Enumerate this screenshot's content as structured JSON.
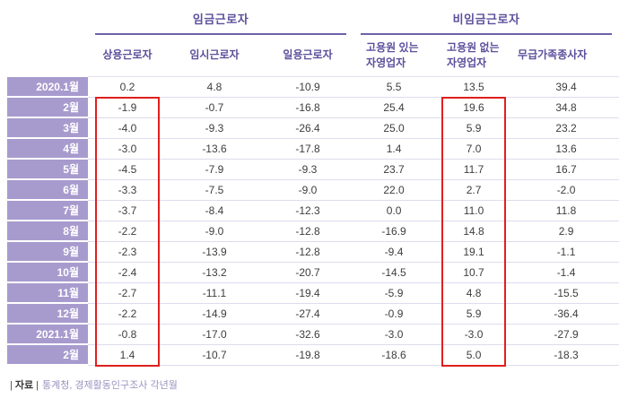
{
  "chart_data": {
    "type": "table",
    "group_headers": [
      {
        "label": "임금근로자",
        "span": 3
      },
      {
        "label": "비임금근로자",
        "span": 3
      }
    ],
    "columns": [
      "상용근로자",
      "임시근로자",
      "일용근로자",
      "고용원 있는\n자영업자",
      "고용원 없는\n자영업자",
      "무급가족종사자"
    ],
    "rows": [
      {
        "label": "2020.1월",
        "values": [
          "0.2",
          "4.8",
          "-10.9",
          "5.5",
          "13.5",
          "39.4"
        ]
      },
      {
        "label": "2월",
        "values": [
          "-1.9",
          "-0.7",
          "-16.8",
          "25.4",
          "19.6",
          "34.8"
        ]
      },
      {
        "label": "3월",
        "values": [
          "-4.0",
          "-9.3",
          "-26.4",
          "25.0",
          "5.9",
          "23.2"
        ]
      },
      {
        "label": "4월",
        "values": [
          "-3.0",
          "-13.6",
          "-17.8",
          "1.4",
          "7.0",
          "13.6"
        ]
      },
      {
        "label": "5월",
        "values": [
          "-4.5",
          "-7.9",
          "-9.3",
          "23.7",
          "11.7",
          "16.7"
        ]
      },
      {
        "label": "6월",
        "values": [
          "-3.3",
          "-7.5",
          "-9.0",
          "22.0",
          "2.7",
          "-2.0"
        ]
      },
      {
        "label": "7월",
        "values": [
          "-3.7",
          "-8.4",
          "-12.3",
          "0.0",
          "11.0",
          "11.8"
        ]
      },
      {
        "label": "8월",
        "values": [
          "-2.2",
          "-9.0",
          "-12.8",
          "-16.9",
          "14.8",
          "2.9"
        ]
      },
      {
        "label": "9월",
        "values": [
          "-2.3",
          "-13.9",
          "-12.8",
          "-9.4",
          "19.1",
          "-1.1"
        ]
      },
      {
        "label": "10월",
        "values": [
          "-2.4",
          "-13.2",
          "-20.7",
          "-14.5",
          "10.7",
          "-1.4"
        ]
      },
      {
        "label": "11월",
        "values": [
          "-2.7",
          "-11.1",
          "-19.4",
          "-5.9",
          "4.8",
          "-15.5"
        ]
      },
      {
        "label": "12월",
        "values": [
          "-2.2",
          "-14.9",
          "-27.4",
          "-0.9",
          "5.9",
          "-36.4"
        ]
      },
      {
        "label": "2021.1월",
        "values": [
          "-0.8",
          "-17.0",
          "-32.6",
          "-3.0",
          "-3.0",
          "-27.9"
        ]
      },
      {
        "label": "2월",
        "values": [
          "1.4",
          "-10.7",
          "-19.8",
          "-18.6",
          "5.0",
          "-18.3"
        ]
      }
    ],
    "highlights": [
      {
        "column": 0,
        "row_start": 1,
        "row_end": 13
      },
      {
        "column": 4,
        "row_start": 1,
        "row_end": 13
      }
    ]
  },
  "footer": {
    "bar": "|",
    "label": "자료",
    "text": "통계청, 경제활동인구조사 각년월"
  },
  "colors": {
    "header_text": "#5b509c",
    "row_label_bg": "#a79bce",
    "underline": "#6c61a8",
    "row_separator": "#e0dbee",
    "highlight_border": "#e0201d"
  }
}
